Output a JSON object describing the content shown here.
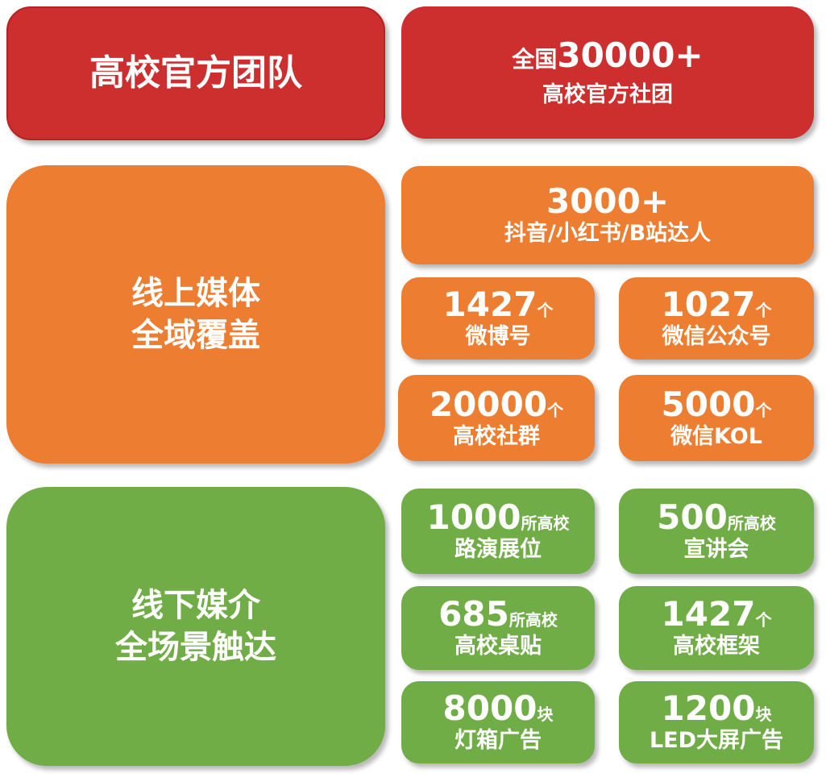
{
  "colors": {
    "red": "#CD2F2F",
    "orange": "#ED7D31",
    "green": "#70AD47"
  },
  "team": {
    "title": "高校官方团队",
    "stat": {
      "prefix": "全国",
      "number": "30000+",
      "label": "高校官方社团"
    }
  },
  "online": {
    "title_line1": "线上媒体",
    "title_line2": "全域覆盖",
    "influencers": {
      "number": "3000+",
      "label": "抖音/小红书/B站达人"
    },
    "stats": [
      {
        "number": "1427",
        "unit": "个",
        "label": "微博号"
      },
      {
        "number": "1027",
        "unit": "个",
        "label": "微信公众号"
      },
      {
        "number": "20000",
        "unit": "个",
        "label": "高校社群"
      },
      {
        "number": "5000",
        "unit": "个",
        "label": "微信KOL"
      }
    ]
  },
  "offline": {
    "title_line1": "线下媒介",
    "title_line2": "全场景触达",
    "stats": [
      {
        "number": "1000",
        "unit": "所高校",
        "label": "路演展位"
      },
      {
        "number": "500",
        "unit": "所高校",
        "label": "宣讲会"
      },
      {
        "number": "685",
        "unit": "所高校",
        "label": "高校桌贴"
      },
      {
        "number": "1427",
        "unit": "个",
        "label": "高校框架"
      },
      {
        "number": "8000",
        "unit": "块",
        "label": "灯箱广告"
      },
      {
        "number": "1200",
        "unit": "块",
        "label": "LED大屏广告"
      }
    ]
  }
}
